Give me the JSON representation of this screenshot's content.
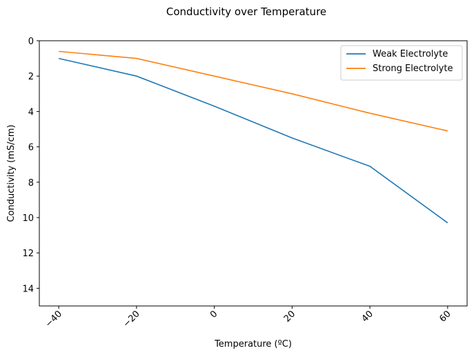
{
  "chart_data": {
    "type": "line",
    "title": "Conductivity over Temperature",
    "xlabel": "Temperature (ºC)",
    "ylabel": "Conductivity (mS/cm)",
    "x": [
      -40,
      -20,
      0,
      20,
      40,
      60
    ],
    "xlim": [
      -45,
      65
    ],
    "ylim": [
      15,
      0
    ],
    "y_inverted": true,
    "xticks": [
      -40,
      -20,
      0,
      20,
      40,
      60
    ],
    "xtick_labels": [
      "−40",
      "−20",
      "0",
      "20",
      "40",
      "60"
    ],
    "xtick_rotation": 45,
    "yticks": [
      0,
      2,
      4,
      6,
      8,
      10,
      12,
      14
    ],
    "ytick_labels": [
      "0",
      "2",
      "4",
      "6",
      "8",
      "10",
      "12",
      "14"
    ],
    "grid": false,
    "legend_position": "top-right",
    "series": [
      {
        "name": "Weak Electrolyte",
        "color": "#1f77b4",
        "values": [
          1.0,
          2.0,
          3.7,
          5.5,
          7.1,
          10.3
        ]
      },
      {
        "name": "Strong Electrolyte",
        "color": "#ff7f0e",
        "values": [
          0.6,
          1.0,
          2.0,
          3.0,
          4.1,
          5.1
        ]
      }
    ]
  }
}
